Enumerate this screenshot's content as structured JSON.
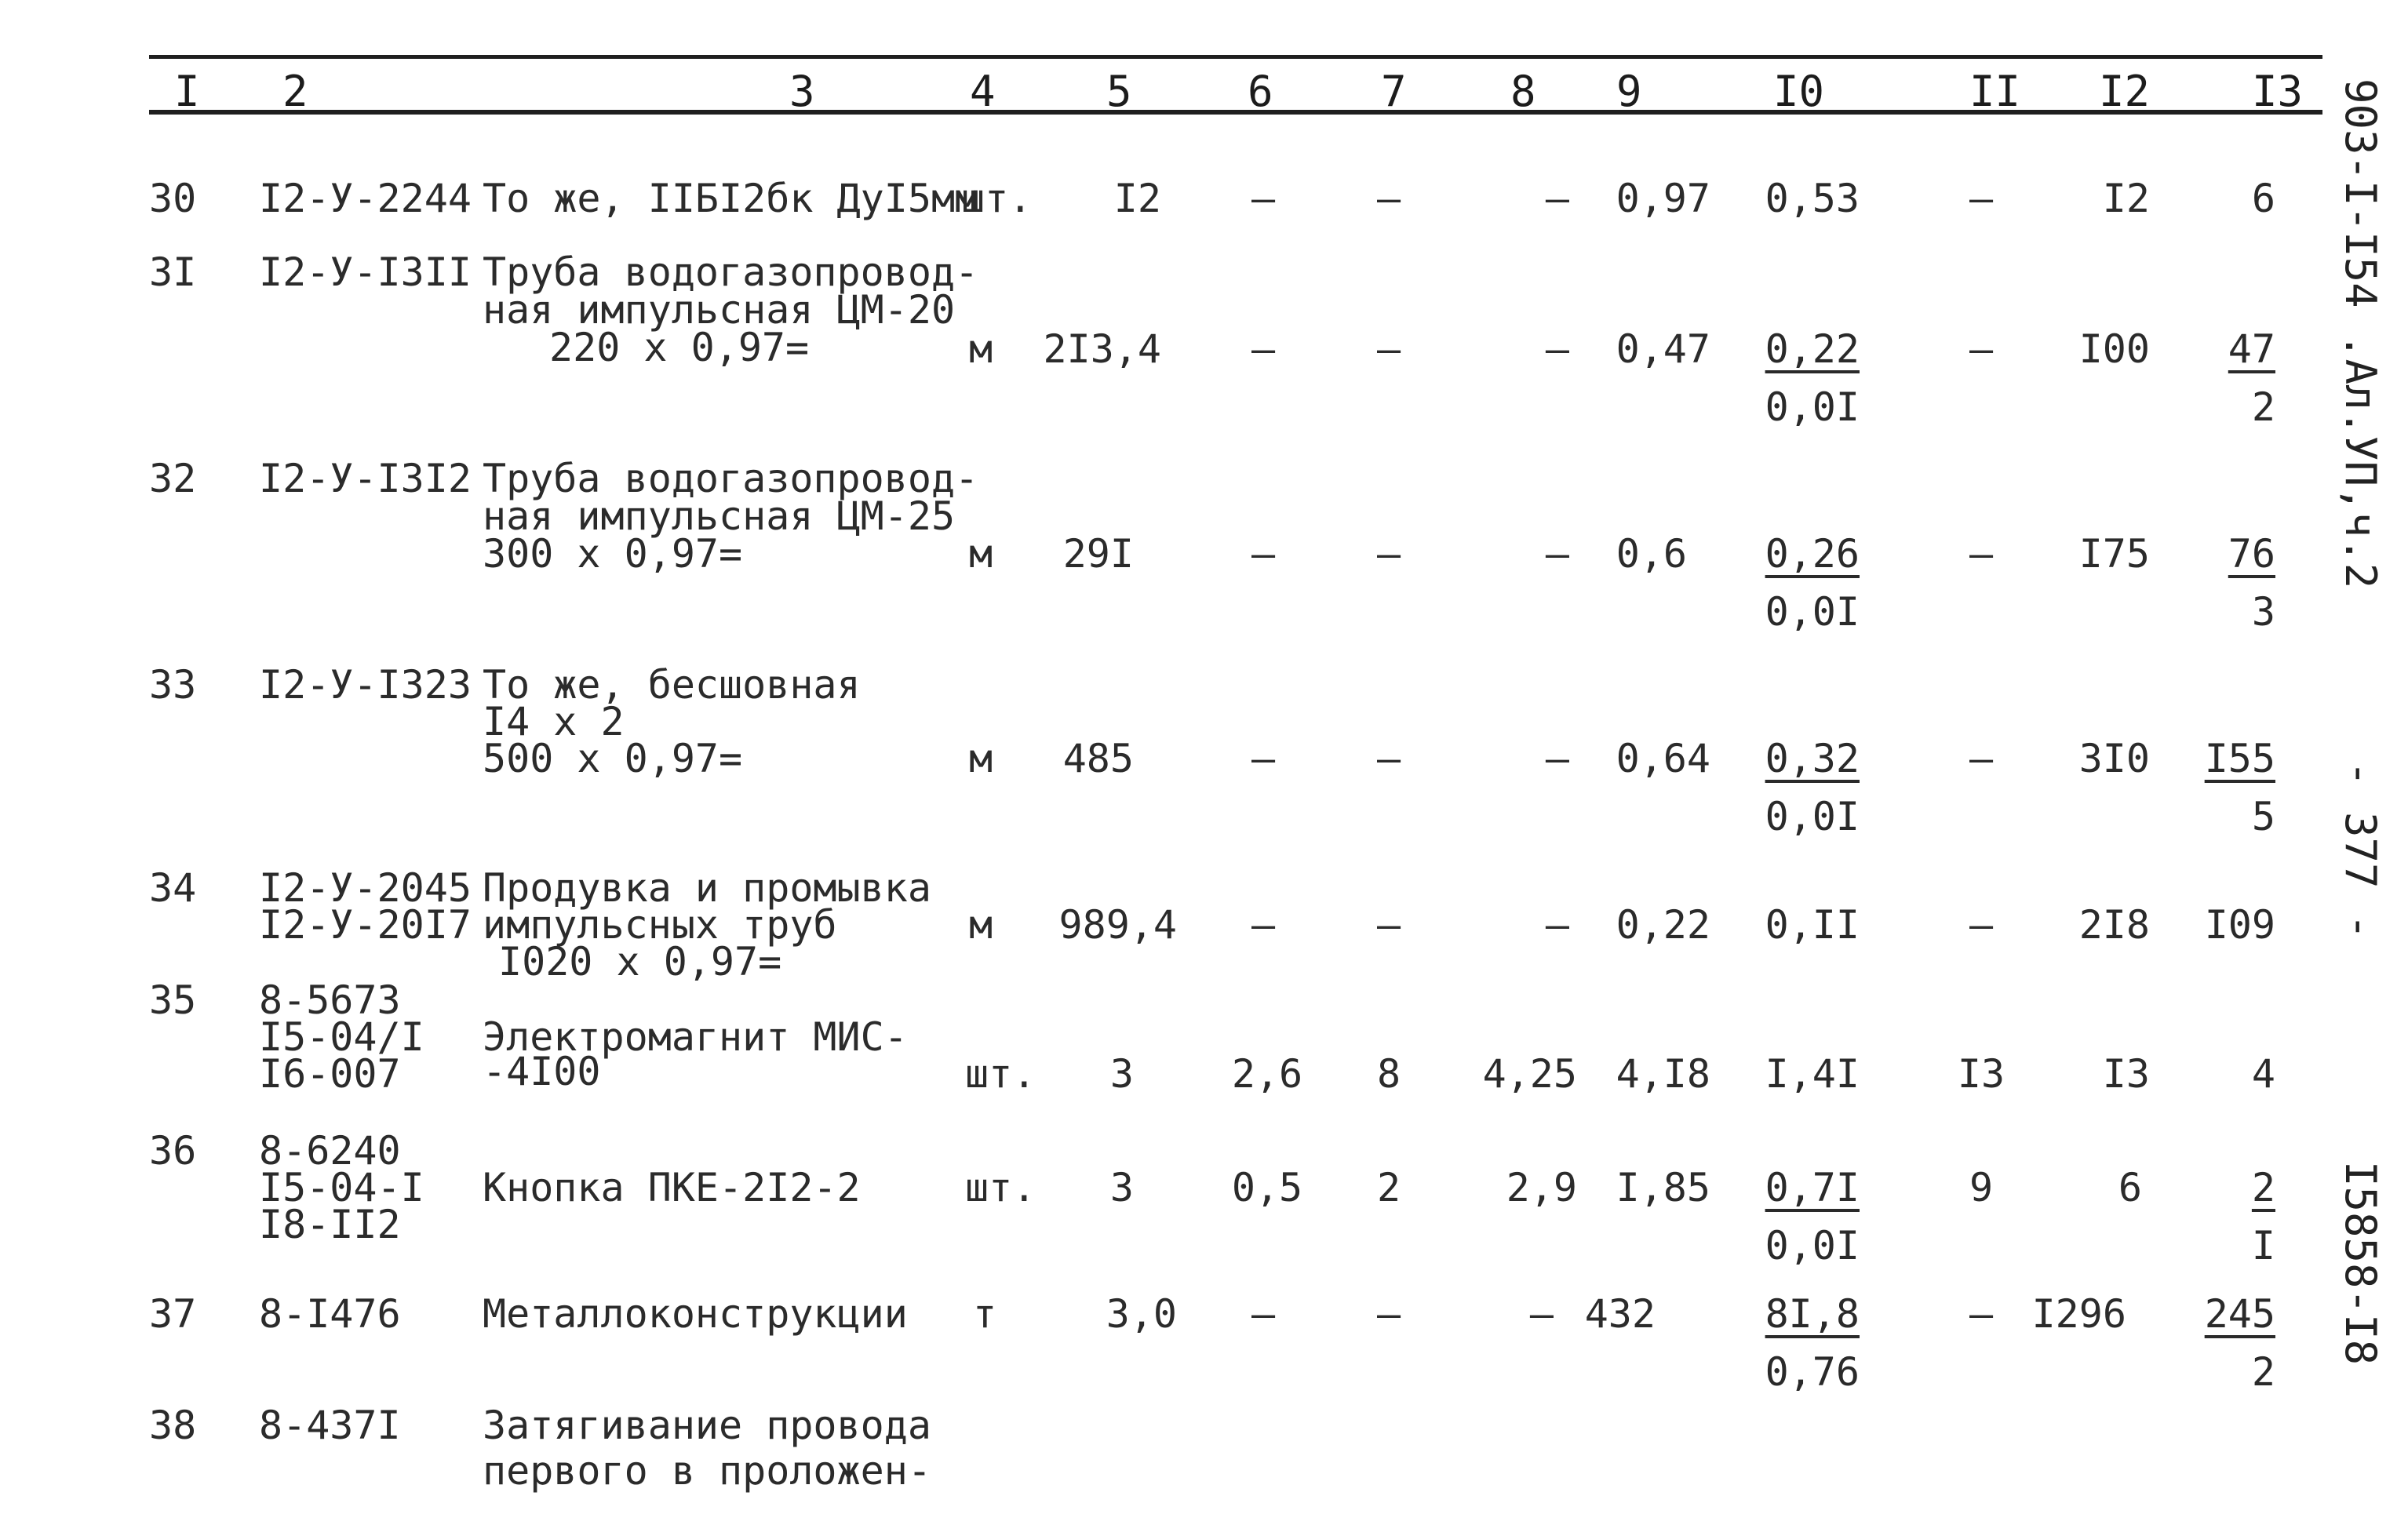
{
  "header": {
    "columns": [
      "I",
      "2",
      "3",
      "4",
      "5",
      "6",
      "7",
      "8",
      "9",
      "I0",
      "II",
      "I2",
      "I3"
    ]
  },
  "side_labels": {
    "top": "903-I-I54 .Ал.УП,ч.2",
    "middle": "- 377 -",
    "bottom": "I5858-I8"
  },
  "rows": [
    {
      "no": "30",
      "code": [
        "I2-У-2244"
      ],
      "name": [
        "То же, IIБI2бк ДуI5мм"
      ],
      "unit": "шт.",
      "c5": "I2",
      "c6": "–",
      "c7": "–",
      "c8": "–",
      "c9": "0,97",
      "c10": [
        "0,53"
      ],
      "c11": "–",
      "c12": "I2",
      "c13": [
        "6"
      ]
    },
    {
      "no": "3I",
      "code": [
        "I2-У-I3II"
      ],
      "name": [
        "Труба водогазопровод-",
        "ная импульсная ЦМ-20",
        "220 х 0,97="
      ],
      "unit": "м",
      "c5": "2I3,4",
      "c6": "–",
      "c7": "–",
      "c8": "–",
      "c9": "0,47",
      "c10": [
        "0,22",
        "0,0I"
      ],
      "c11": "–",
      "c12": "I00",
      "c13": [
        "47",
        "2"
      ]
    },
    {
      "no": "32",
      "code": [
        "I2-У-I3I2"
      ],
      "name": [
        "Труба водогазопровод-",
        "ная импульсная ЦМ-25",
        "300 х 0,97="
      ],
      "unit": "м",
      "c5": "29I",
      "c6": "–",
      "c7": "–",
      "c8": "–",
      "c9": "0,6",
      "c10": [
        "0,26",
        "0,0I"
      ],
      "c11": "–",
      "c12": "I75",
      "c13": [
        "76",
        "3"
      ]
    },
    {
      "no": "33",
      "code": [
        "I2-У-I323"
      ],
      "name": [
        "То же, бесшовная",
        "I4 х 2",
        "500 х 0,97="
      ],
      "unit": "м",
      "c5": "485",
      "c6": "–",
      "c7": "–",
      "c8": "–",
      "c9": "0,64",
      "c10": [
        "0,32",
        "0,0I"
      ],
      "c11": "–",
      "c12": "3I0",
      "c13": [
        "I55",
        "5"
      ]
    },
    {
      "no": "34",
      "code": [
        "I2-У-2045",
        "I2-У-20I7"
      ],
      "name": [
        "Продувка и промывка",
        "импульсных труб",
        "I020 х 0,97="
      ],
      "unit": "м",
      "c5": "989,4",
      "c6": "–",
      "c7": "–",
      "c8": "–",
      "c9": "0,22",
      "c10": [
        "0,II"
      ],
      "c11": "–",
      "c12": "2I8",
      "c13": [
        "I09"
      ]
    },
    {
      "no": "35",
      "code": [
        "8-5673",
        "I5-04/I",
        "I6-007"
      ],
      "name": [
        "Электромагнит МИС-",
        "-4I00"
      ],
      "unit": "шт.",
      "c5": "3",
      "c6": "2,6",
      "c7": "8",
      "c8": "4,25",
      "c9": "4,I8",
      "c10": [
        "I,4I"
      ],
      "c11": "I3",
      "c12": "I3",
      "c13": [
        "4"
      ]
    },
    {
      "no": "36",
      "code": [
        "8-6240",
        "I5-04-I",
        "I8-II2"
      ],
      "name": [
        "Кнопка ПКЕ-2I2-2"
      ],
      "unit": "шт.",
      "c5": "3",
      "c6": "0,5",
      "c7": "2",
      "c8": "2,9",
      "c9": "I,85",
      "c10": [
        "0,7I",
        "0,0I"
      ],
      "c11": "9",
      "c12": "6",
      "c13": [
        "2",
        "I"
      ]
    },
    {
      "no": "37",
      "code": [
        "8-I476"
      ],
      "name": [
        "Металлоконструкции"
      ],
      "unit": "т",
      "c5": "3,0",
      "c6": "–",
      "c7": "–",
      "c8": "–",
      "c9": "432",
      "c10": [
        "8I,8",
        "0,76"
      ],
      "c11": "–",
      "c12": "I296",
      "c13": [
        "245",
        "2"
      ]
    },
    {
      "no": "38",
      "code": [
        "8-437I"
      ],
      "name": [
        "Затягивание провода",
        "первого в проложен-"
      ]
    }
  ]
}
